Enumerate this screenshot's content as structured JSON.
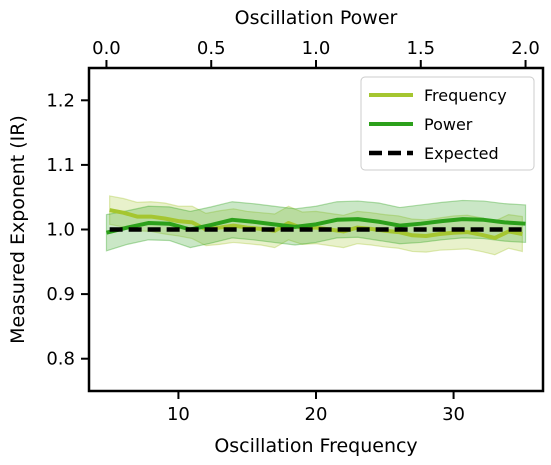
{
  "chart_data": {
    "type": "line",
    "xlabel": "Oscillation Frequency",
    "x2label": "Oscillation Power",
    "ylabel": "Measured Exponent (IR)",
    "xlim": [
      3.5,
      36.5
    ],
    "x2lim": [
      -0.0833,
      2.0833
    ],
    "ylim": [
      0.75,
      1.25
    ],
    "xticks": [
      10,
      20,
      30
    ],
    "x2ticks": [
      0.0,
      0.5,
      1.0,
      1.5,
      2.0
    ],
    "x2ticklabels": [
      "0.0",
      "0.5",
      "1.0",
      "1.5",
      "2.0"
    ],
    "yticks": [
      0.8,
      0.9,
      1.0,
      1.1,
      1.2
    ],
    "yticklabels": [
      "0.8",
      "0.9",
      "1.0",
      "1.1",
      "1.2"
    ],
    "grid": false,
    "legend": {
      "placement": "top-right"
    },
    "series": [
      {
        "name": "Frequency",
        "axis": "bottom",
        "color": "#a5c630",
        "x": [
          5,
          6,
          7,
          8,
          9,
          10,
          11,
          12,
          13,
          14,
          15,
          16,
          17,
          18,
          19,
          20,
          21,
          22,
          23,
          24,
          25,
          26,
          27,
          28,
          29,
          30,
          31,
          32,
          33,
          34,
          35
        ],
        "y": [
          1.03,
          1.026,
          1.02,
          1.02,
          1.017,
          1.013,
          1.011,
          1.0,
          1.003,
          1.006,
          1.003,
          1.001,
          0.998,
          1.01,
          1.002,
          1.003,
          1.0,
          0.997,
          1.003,
          1.001,
          0.998,
          0.996,
          0.991,
          0.99,
          0.993,
          0.995,
          0.996,
          0.992,
          0.987,
          0.997,
          0.993
        ],
        "lower": [
          1.008,
          1.004,
          0.998,
          0.997,
          0.993,
          0.99,
          0.986,
          0.975,
          0.977,
          0.98,
          0.978,
          0.976,
          0.972,
          0.984,
          0.977,
          0.978,
          0.975,
          0.972,
          0.978,
          0.976,
          0.973,
          0.971,
          0.966,
          0.965,
          0.968,
          0.969,
          0.97,
          0.966,
          0.961,
          0.971,
          0.966
        ],
        "upper": [
          1.052,
          1.048,
          1.042,
          1.043,
          1.041,
          1.036,
          1.036,
          1.025,
          1.029,
          1.032,
          1.028,
          1.026,
          1.024,
          1.036,
          1.027,
          1.028,
          1.025,
          1.022,
          1.028,
          1.026,
          1.023,
          1.021,
          1.016,
          1.015,
          1.018,
          1.021,
          1.022,
          1.018,
          1.013,
          1.023,
          1.02
        ]
      },
      {
        "name": "Power",
        "axis": "top",
        "color": "#2ca01b",
        "x": [
          0.0,
          0.1,
          0.2,
          0.3,
          0.4,
          0.5,
          0.6,
          0.7,
          0.8,
          0.9,
          1.0,
          1.1,
          1.2,
          1.3,
          1.4,
          1.5,
          1.6,
          1.7,
          1.8,
          1.9,
          2.0
        ],
        "y": [
          0.995,
          1.003,
          1.01,
          1.009,
          1.0,
          1.007,
          1.015,
          1.012,
          1.008,
          1.004,
          1.008,
          1.015,
          1.016,
          1.012,
          1.006,
          1.009,
          1.013,
          1.016,
          1.015,
          1.011,
          1.009
        ],
        "lower": [
          0.967,
          0.977,
          0.984,
          0.983,
          0.972,
          0.979,
          0.987,
          0.984,
          0.98,
          0.976,
          0.98,
          0.987,
          0.988,
          0.983,
          0.978,
          0.98,
          0.984,
          0.987,
          0.986,
          0.982,
          0.98
        ],
        "upper": [
          1.023,
          1.029,
          1.036,
          1.035,
          1.028,
          1.035,
          1.043,
          1.04,
          1.036,
          1.032,
          1.036,
          1.043,
          1.044,
          1.041,
          1.034,
          1.038,
          1.042,
          1.045,
          1.044,
          1.04,
          1.038
        ]
      },
      {
        "name": "Expected",
        "axis": "bottom",
        "color": "#000000",
        "dashed": true,
        "x": [
          5,
          35
        ],
        "y": [
          1.0,
          1.0
        ]
      }
    ]
  }
}
